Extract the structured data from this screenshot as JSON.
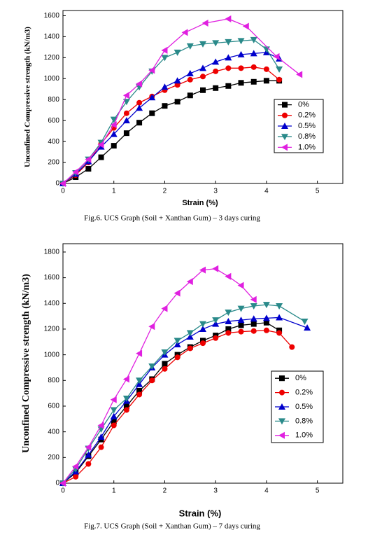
{
  "chart_data": [
    {
      "type": "line",
      "caption": "Fig.6. UCS Graph (Soil + Xanthan Gum) – 3 days curing",
      "xlabel": "Strain (%)",
      "ylabel": "Unconfined Compressive strength (kN/m3)",
      "xlim": [
        0,
        5.5
      ],
      "ylim": [
        0,
        1650
      ],
      "xticks": [
        0,
        1,
        2,
        3,
        4,
        5
      ],
      "yticks": [
        0,
        200,
        400,
        600,
        800,
        1000,
        1200,
        1400,
        1600
      ],
      "legend": "lower right",
      "series": [
        {
          "name": "0%",
          "color": "#000000",
          "marker": "square",
          "x": [
            0,
            0.25,
            0.5,
            0.75,
            1,
            1.25,
            1.5,
            1.75,
            2,
            2.25,
            2.5,
            2.75,
            3,
            3.25,
            3.5,
            3.75,
            4,
            4.25
          ],
          "values": [
            0,
            60,
            140,
            250,
            360,
            480,
            580,
            670,
            740,
            780,
            840,
            890,
            910,
            930,
            960,
            970,
            980,
            980
          ]
        },
        {
          "name": "0.2%",
          "color": "#ee0000",
          "marker": "circle",
          "x": [
            0,
            0.25,
            0.5,
            0.75,
            1,
            1.25,
            1.5,
            1.75,
            2,
            2.25,
            2.5,
            2.75,
            3,
            3.25,
            3.5,
            3.75,
            4,
            4.25
          ],
          "values": [
            0,
            80,
            200,
            380,
            530,
            670,
            770,
            830,
            890,
            940,
            990,
            1020,
            1070,
            1100,
            1100,
            1110,
            1090,
            990
          ]
        },
        {
          "name": "0.5%",
          "color": "#0000cc",
          "marker": "up",
          "x": [
            0,
            0.25,
            0.5,
            0.75,
            1,
            1.25,
            1.5,
            1.75,
            2,
            2.25,
            2.5,
            2.75,
            3,
            3.25,
            3.5,
            3.75,
            4,
            4.25
          ],
          "values": [
            0,
            90,
            210,
            350,
            470,
            600,
            720,
            820,
            920,
            980,
            1050,
            1100,
            1160,
            1200,
            1230,
            1240,
            1250,
            1190
          ]
        },
        {
          "name": "0.8%",
          "color": "#2a8a8a",
          "marker": "down",
          "x": [
            0,
            0.25,
            0.5,
            0.75,
            1,
            1.25,
            1.5,
            1.75,
            2,
            2.25,
            2.5,
            2.75,
            3,
            3.25,
            3.5,
            3.75,
            4,
            4.25
          ],
          "values": [
            0,
            100,
            230,
            390,
            610,
            780,
            920,
            1070,
            1200,
            1250,
            1310,
            1330,
            1340,
            1350,
            1360,
            1370,
            1280,
            1090
          ]
        },
        {
          "name": "1.0%",
          "color": "#e020e0",
          "marker": "left",
          "x": [
            0,
            0.25,
            0.5,
            0.75,
            1,
            1.25,
            1.5,
            1.75,
            2,
            2.4,
            2.8,
            3.25,
            3.6,
            4.2,
            4.65
          ],
          "values": [
            0,
            110,
            230,
            370,
            560,
            840,
            950,
            1080,
            1270,
            1440,
            1530,
            1570,
            1500,
            1210,
            1040
          ]
        }
      ]
    },
    {
      "type": "line",
      "caption": "Fig.7. UCS Graph (Soil + Xanthan Gum) – 7 days curing",
      "xlabel": "Strain (%)",
      "ylabel": "Unconfined Compressive strength (kN/m3)",
      "xlim": [
        0,
        5.5
      ],
      "ylim": [
        0,
        1865
      ],
      "xticks": [
        0,
        1,
        2,
        3,
        4,
        5
      ],
      "yticks": [
        0,
        200,
        400,
        600,
        800,
        1000,
        1200,
        1400,
        1600,
        1800
      ],
      "legend": "lower right",
      "series": [
        {
          "name": "0%",
          "color": "#000000",
          "marker": "square",
          "x": [
            0,
            0.25,
            0.5,
            0.75,
            1,
            1.25,
            1.5,
            1.75,
            2,
            2.25,
            2.5,
            2.75,
            3,
            3.25,
            3.5,
            3.75,
            4,
            4.25
          ],
          "values": [
            0,
            80,
            210,
            340,
            480,
            600,
            720,
            810,
            930,
            1000,
            1060,
            1110,
            1150,
            1200,
            1230,
            1240,
            1250,
            1190
          ]
        },
        {
          "name": "0.2%",
          "color": "#ee0000",
          "marker": "circle",
          "x": [
            0,
            0.25,
            0.5,
            0.75,
            1,
            1.25,
            1.5,
            1.75,
            2,
            2.25,
            2.5,
            2.75,
            3,
            3.25,
            3.5,
            3.75,
            4,
            4.25,
            4.5
          ],
          "values": [
            0,
            50,
            150,
            280,
            450,
            570,
            690,
            800,
            890,
            980,
            1050,
            1090,
            1130,
            1170,
            1180,
            1185,
            1190,
            1170,
            1060
          ]
        },
        {
          "name": "0.5%",
          "color": "#0000cc",
          "marker": "up",
          "x": [
            0,
            0.25,
            0.5,
            0.75,
            1,
            1.25,
            1.5,
            1.75,
            2,
            2.25,
            2.5,
            2.75,
            3,
            3.25,
            3.5,
            3.75,
            4,
            4.25,
            4.8
          ],
          "values": [
            0,
            90,
            220,
            360,
            520,
            640,
            770,
            900,
            1000,
            1080,
            1140,
            1200,
            1240,
            1260,
            1270,
            1280,
            1285,
            1290,
            1210
          ]
        },
        {
          "name": "0.8%",
          "color": "#2a8a8a",
          "marker": "down",
          "x": [
            0,
            0.25,
            0.5,
            0.75,
            1,
            1.25,
            1.5,
            1.75,
            2,
            2.25,
            2.5,
            2.75,
            3,
            3.25,
            3.5,
            3.75,
            4,
            4.25,
            4.75
          ],
          "values": [
            0,
            110,
            270,
            420,
            570,
            660,
            800,
            910,
            1020,
            1110,
            1170,
            1240,
            1270,
            1330,
            1360,
            1380,
            1390,
            1380,
            1260
          ]
        },
        {
          "name": "1.0%",
          "color": "#e020e0",
          "marker": "left",
          "x": [
            0,
            0.25,
            0.5,
            0.75,
            1,
            1.25,
            1.5,
            1.75,
            2,
            2.25,
            2.5,
            2.75,
            3,
            3.25,
            3.5,
            3.75
          ],
          "values": [
            0,
            130,
            280,
            450,
            650,
            810,
            1010,
            1220,
            1360,
            1480,
            1570,
            1660,
            1670,
            1610,
            1540,
            1430
          ]
        }
      ]
    }
  ]
}
